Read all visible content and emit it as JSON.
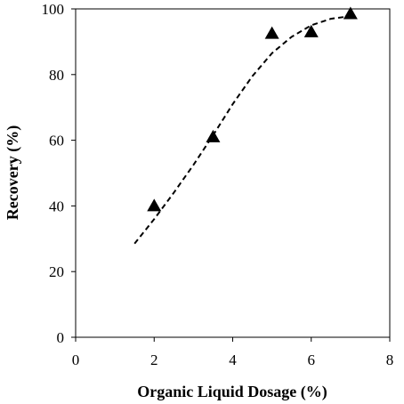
{
  "chart_data": {
    "type": "scatter",
    "title": "",
    "xlabel": "Organic Liquid Dosage (%)",
    "ylabel": "Recovery (%)",
    "xlim": [
      0,
      8
    ],
    "ylim": [
      0,
      100
    ],
    "x_ticks": [
      "0",
      "2",
      "4",
      "6",
      "8"
    ],
    "y_ticks": [
      "0",
      "20",
      "40",
      "60",
      "80",
      "100"
    ],
    "grid": false,
    "legend": "none",
    "series": [
      {
        "marker": "triangle",
        "color": "#000000",
        "points": [
          {
            "x": 2.0,
            "y": 40
          },
          {
            "x": 3.5,
            "y": 61
          },
          {
            "x": 5.0,
            "y": 92.5
          },
          {
            "x": 6.0,
            "y": 93
          },
          {
            "x": 7.0,
            "y": 98.5
          }
        ]
      }
    ],
    "trendline": {
      "style": "dashed",
      "color": "#000000",
      "points": [
        {
          "x": 1.5,
          "y": 28.5
        },
        {
          "x": 2.0,
          "y": 36
        },
        {
          "x": 2.5,
          "y": 44
        },
        {
          "x": 3.0,
          "y": 52.5
        },
        {
          "x": 3.5,
          "y": 61.5
        },
        {
          "x": 4.0,
          "y": 71
        },
        {
          "x": 4.5,
          "y": 79.5
        },
        {
          "x": 5.0,
          "y": 86.5
        },
        {
          "x": 5.5,
          "y": 91.5
        },
        {
          "x": 6.0,
          "y": 95
        },
        {
          "x": 6.5,
          "y": 97
        },
        {
          "x": 7.0,
          "y": 97.8
        }
      ]
    }
  }
}
